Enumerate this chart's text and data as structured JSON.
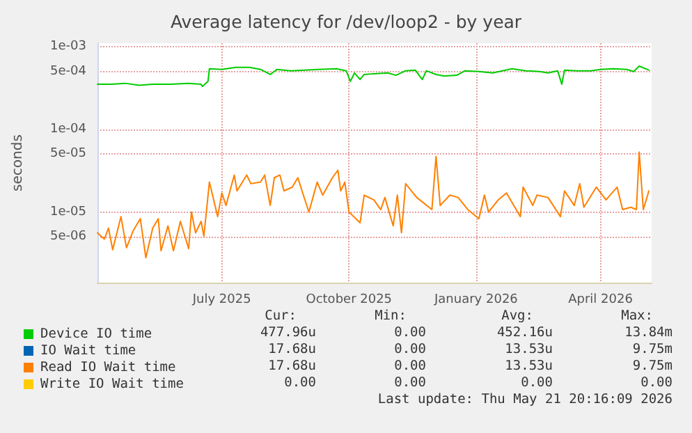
{
  "chart_data": {
    "type": "line",
    "title": "Average latency for /dev/loop2 - by year",
    "ylabel": "seconds",
    "log": "y",
    "grid": true,
    "legend": "bottom left",
    "marker": "none",
    "line_style": "solid",
    "xlim": [
      "2025-04-02",
      "2026-05-08"
    ],
    "xticks": [
      {
        "value": "2025-07-01",
        "label": "July 2025"
      },
      {
        "value": "2025-10-01",
        "label": "October 2025"
      },
      {
        "value": "2026-01-01",
        "label": "January 2026"
      },
      {
        "value": "2026-04-01",
        "label": "April 2026"
      }
    ],
    "ylim": [
      1.4e-06,
      0.0011
    ],
    "yticks": [
      {
        "value": 5e-06,
        "label": "5e-06"
      },
      {
        "value": 1e-05,
        "label": "1e-05"
      },
      {
        "value": 5e-05,
        "label": "5e-05"
      },
      {
        "value": 0.0001,
        "label": "1e-04"
      },
      {
        "value": 0.0005,
        "label": "5e-04"
      },
      {
        "value": 0.001,
        "label": "1e-03"
      }
    ],
    "series": [
      {
        "name": "Device IO time",
        "color": "#00cc00",
        "x": [
          "2025-04-02",
          "2025-04-12",
          "2025-04-22",
          "2025-05-02",
          "2025-05-12",
          "2025-05-25",
          "2025-06-07",
          "2025-06-16",
          "2025-06-17",
          "2025-06-21",
          "2025-06-22",
          "2025-07-01",
          "2025-07-11",
          "2025-07-21",
          "2025-07-29",
          "2025-08-05",
          "2025-08-10",
          "2025-08-20",
          "2025-08-30",
          "2025-09-09",
          "2025-09-22",
          "2025-09-29",
          "2025-10-02",
          "2025-10-05",
          "2025-10-09",
          "2025-10-12",
          "2025-10-19",
          "2025-10-29",
          "2025-11-04",
          "2025-11-11",
          "2025-11-18",
          "2025-11-23",
          "2025-11-26",
          "2025-12-03",
          "2025-12-09",
          "2025-12-18",
          "2025-12-24",
          "2026-01-03",
          "2026-01-13",
          "2026-01-20",
          "2026-01-27",
          "2026-02-06",
          "2026-02-16",
          "2026-02-22",
          "2026-03-01",
          "2026-03-04",
          "2026-03-06",
          "2026-03-15",
          "2026-03-25",
          "2026-04-01",
          "2026-04-10",
          "2026-04-20",
          "2026-04-25",
          "2026-04-29",
          "2026-05-06"
        ],
        "values": [
          0.00035,
          0.00035,
          0.00036,
          0.00034,
          0.00035,
          0.00035,
          0.00036,
          0.00035,
          0.00033,
          0.00038,
          0.00054,
          0.00053,
          0.00056,
          0.00056,
          0.00053,
          0.00046,
          0.00053,
          0.00051,
          0.00052,
          0.00053,
          0.00054,
          0.00051,
          0.00038,
          0.00048,
          0.0004,
          0.00046,
          0.00047,
          0.00048,
          0.00045,
          0.00051,
          0.00052,
          0.0004,
          0.00051,
          0.00046,
          0.00044,
          0.00045,
          0.00051,
          0.0005,
          0.00048,
          0.00051,
          0.00054,
          0.00051,
          0.0005,
          0.00048,
          0.00051,
          0.00035,
          0.00052,
          0.00051,
          0.00051,
          0.00053,
          0.00054,
          0.00053,
          0.0005,
          0.00058,
          0.00052
        ]
      },
      {
        "name": "IO Wait time",
        "color": "#0066b3"
      },
      {
        "name": "Read IO Wait time",
        "color": "#ff8000",
        "x": [
          "2025-04-02",
          "2025-04-07",
          "2025-04-10",
          "2025-04-13",
          "2025-04-19",
          "2025-04-23",
          "2025-04-28",
          "2025-05-03",
          "2025-05-07",
          "2025-05-12",
          "2025-05-16",
          "2025-05-18",
          "2025-05-23",
          "2025-05-27",
          "2025-06-01",
          "2025-06-07",
          "2025-06-09",
          "2025-06-12",
          "2025-06-16",
          "2025-06-18",
          "2025-06-22",
          "2025-06-28",
          "2025-07-01",
          "2025-07-04",
          "2025-07-10",
          "2025-07-12",
          "2025-07-19",
          "2025-07-22",
          "2025-07-29",
          "2025-08-01",
          "2025-08-05",
          "2025-08-08",
          "2025-08-12",
          "2025-08-15",
          "2025-08-21",
          "2025-08-25",
          "2025-08-29",
          "2025-09-02",
          "2025-09-08",
          "2025-09-12",
          "2025-09-19",
          "2025-09-23",
          "2025-09-25",
          "2025-09-28",
          "2025-10-01",
          "2025-10-09",
          "2025-10-12",
          "2025-10-19",
          "2025-10-24",
          "2025-10-27",
          "2025-11-02",
          "2025-11-05",
          "2025-11-08",
          "2025-11-11",
          "2025-11-19",
          "2025-11-30",
          "2025-12-03",
          "2025-12-06",
          "2025-12-13",
          "2025-12-19",
          "2025-12-26",
          "2026-01-03",
          "2026-01-07",
          "2026-01-10",
          "2026-01-17",
          "2026-01-23",
          "2026-02-02",
          "2026-02-04",
          "2026-02-11",
          "2026-02-14",
          "2026-02-22",
          "2026-03-03",
          "2026-03-06",
          "2026-03-13",
          "2026-03-17",
          "2026-03-20",
          "2026-03-29",
          "2026-04-05",
          "2026-04-13",
          "2026-04-17",
          "2026-04-23",
          "2026-04-27",
          "2026-04-29",
          "2026-05-02",
          "2026-05-06"
        ],
        "values": [
          5.6e-06,
          4.7e-06,
          6.4e-06,
          3.5e-06,
          8.8e-06,
          3.7e-06,
          6e-06,
          8.3e-06,
          2.8e-06,
          6.4e-06,
          8.3e-06,
          3.4e-06,
          6.8e-06,
          3.4e-06,
          7.7e-06,
          3.6e-06,
          1e-05,
          5.6e-06,
          7.7e-06,
          5.1e-06,
          2.3e-05,
          8.8e-06,
          1.7e-05,
          1.2e-05,
          2.8e-05,
          1.8e-05,
          2.8e-05,
          2.2e-05,
          2.3e-05,
          2.8e-05,
          1.2e-05,
          2.6e-05,
          2.8e-05,
          1.8e-05,
          2e-05,
          2.6e-05,
          1.6e-05,
          1e-05,
          2.3e-05,
          1.6e-05,
          2.6e-05,
          3.2e-05,
          1.8e-05,
          2.3e-05,
          1e-05,
          7.4e-06,
          1.6e-05,
          1.4e-05,
          1.07e-05,
          1.5e-05,
          6.8e-06,
          1.6e-05,
          5.6e-06,
          2.2e-05,
          1.5e-05,
          1.07e-05,
          4.7e-05,
          1.2e-05,
          1.6e-05,
          1.5e-05,
          1.07e-05,
          8.3e-06,
          1.6e-05,
          1e-05,
          1.4e-05,
          1.7e-05,
          8.8e-06,
          2e-05,
          1.2e-05,
          1.6e-05,
          1.5e-05,
          8.8e-06,
          1.8e-05,
          1.2e-05,
          2.2e-05,
          1.14e-05,
          2e-05,
          1.4e-05,
          2e-05,
          1.07e-05,
          1.14e-05,
          1.07e-05,
          5.3e-05,
          1.07e-05,
          1.8e-05
        ]
      },
      {
        "name": "Write IO Wait time",
        "color": "#ffcc00"
      }
    ],
    "annotations": [
      "Cur:",
      "Min:",
      "Avg:",
      "Max:",
      "477.96u",
      "0.00",
      "452.16u",
      "13.84m",
      "17.68u",
      "0.00",
      "13.53u",
      "9.75m",
      "17.68u",
      "0.00",
      "13.53u",
      "9.75m",
      "0.00",
      "0.00",
      "0.00",
      "0.00",
      "Last update: Thu May 21 20:16:09 2026"
    ]
  }
}
